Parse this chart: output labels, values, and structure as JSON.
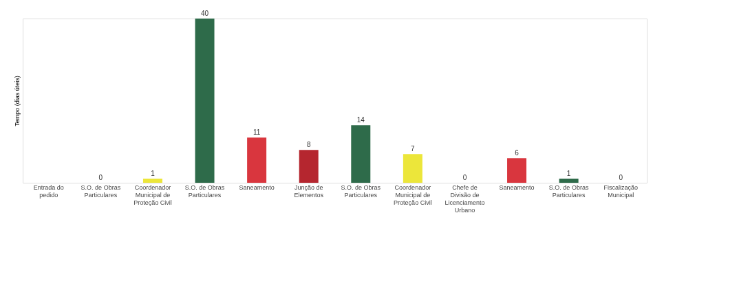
{
  "chart_data": {
    "type": "bar",
    "ylabel": "Tempo (dias úteis)",
    "categories": [
      "Entrada do pedido",
      "S.O. de Obras Particulares",
      "Coordenador Municipal de Proteção Civil",
      "S.O. de Obras Particulares",
      "Saneamento",
      "Junção de Elementos",
      "S.O. de Obras Particulares",
      "Coordenador Municipal de Proteção Civil",
      "Chefe de Divisão de Licenciamento Urbano",
      "Saneamento",
      "S.O. de Obras Particulares",
      "Fiscalização Municipal"
    ],
    "values": [
      null,
      0,
      1,
      40,
      11,
      8,
      14,
      7,
      0,
      6,
      1,
      0
    ],
    "colors": [
      "#ffffff",
      "#2e6b4a",
      "#ece63a",
      "#2e6b4a",
      "#d9363e",
      "#b5262f",
      "#2e6b4a",
      "#ece63a",
      "#e8903a",
      "#d9363e",
      "#2e6b4a",
      "#e0603a"
    ],
    "data_labels": true,
    "tick_labels": "x",
    "grid": false
  }
}
